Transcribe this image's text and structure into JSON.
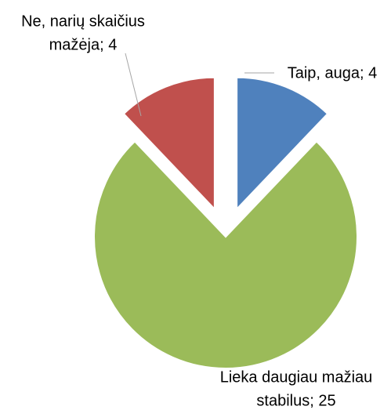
{
  "chart_data": {
    "type": "pie",
    "values": [
      4,
      25,
      4
    ],
    "value_labels": [
      [
        "Taip, auga; 4"
      ],
      [
        "Lieka daugiau mažiau",
        "stabilus; 25"
      ],
      [
        "Ne, narių skaičius",
        "mažėja; 4"
      ]
    ],
    "colors": [
      "#4f81bd",
      "#9bbb59",
      "#c0504d"
    ],
    "exploded": [
      true,
      false,
      true
    ]
  }
}
